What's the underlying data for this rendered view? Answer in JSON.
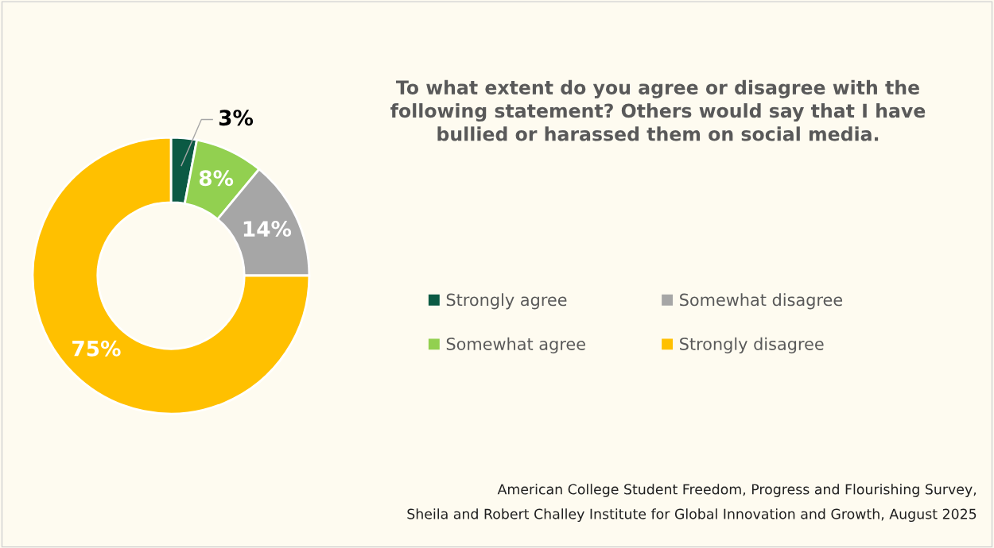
{
  "chart_data": {
    "type": "donut",
    "title": "To what extent do you agree or disagree with the\nfollowing statement? Others would say that I have\nbullied or harassed them on social media.",
    "categories": [
      "Strongly agree",
      "Somewhat agree",
      "Somewhat disagree",
      "Strongly disagree"
    ],
    "values": [
      3,
      8,
      14,
      75
    ],
    "colors": [
      "#0b5a44",
      "#92d050",
      "#a6a6a6",
      "#ffc000"
    ],
    "value_labels": [
      "3%",
      "8%",
      "14%",
      "75%"
    ],
    "legend": "right",
    "annotations": [
      "American College Student Freedom, Progress and Flourishing Survey,",
      "Sheila and Robert Challey Institute for Global Innovation and Growth, August 2025"
    ]
  }
}
